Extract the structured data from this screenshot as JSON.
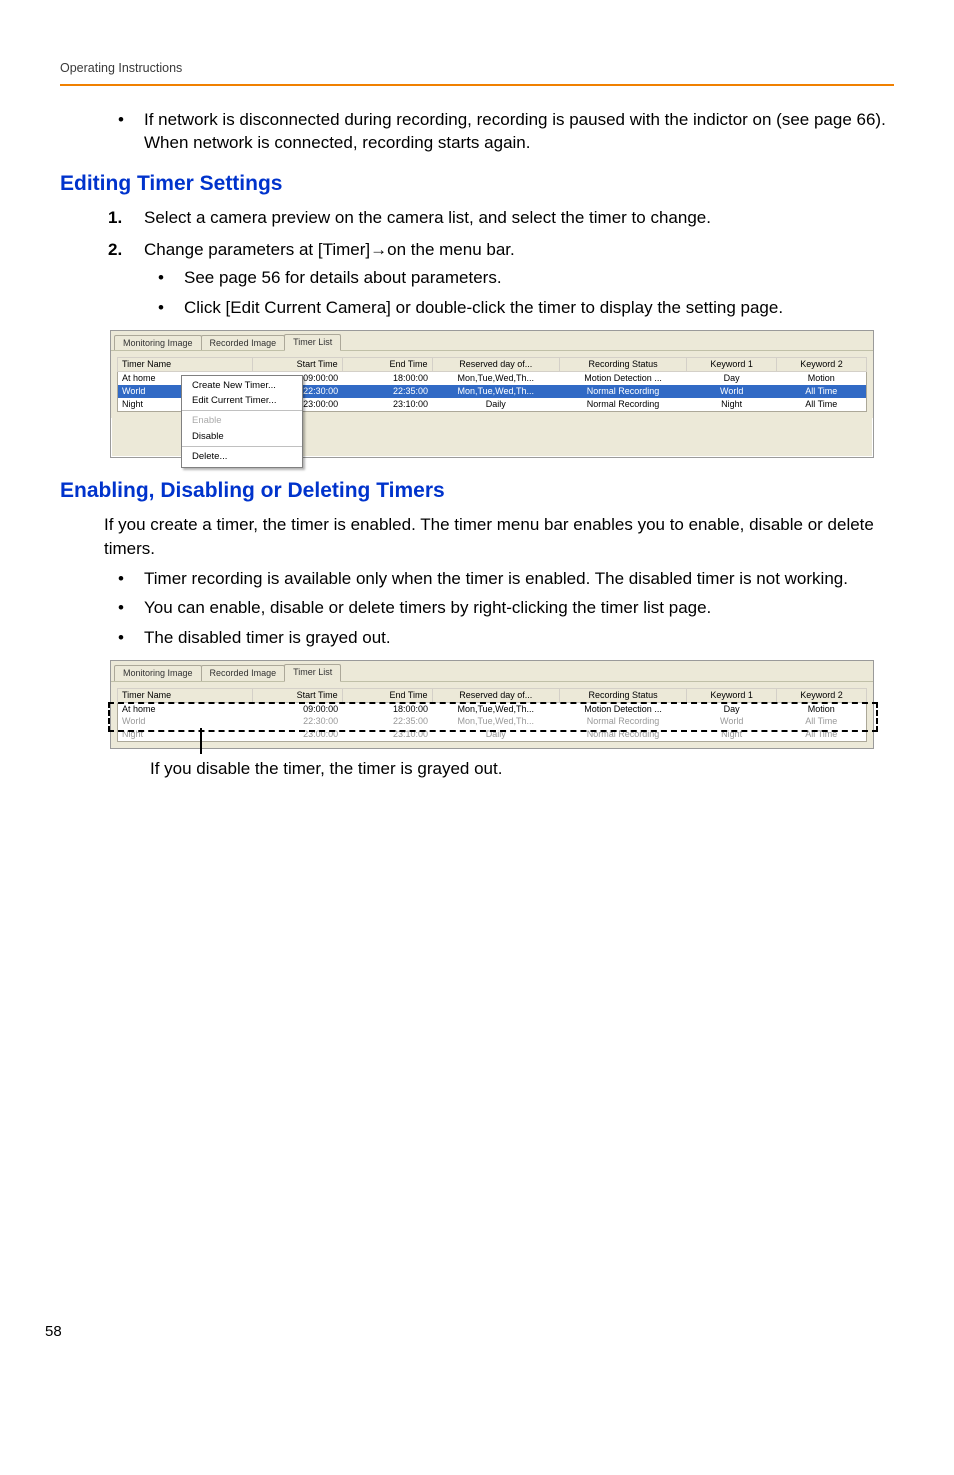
{
  "header": {
    "running": "Operating Instructions"
  },
  "intro_bullets": [
    "If network is disconnected during recording, recording is paused with the indictor on (see page 66). When network is connected, recording starts again."
  ],
  "section1": {
    "title": "Editing Timer Settings",
    "steps": [
      "Select a camera preview on the camera list, and select the timer to change.",
      "Change parameters at [Timer]→on the menu bar."
    ],
    "step2_sub": [
      "See page 56 for details about parameters.",
      "Click [Edit Current Camera] or double-click the timer to display the setting page."
    ]
  },
  "win1": {
    "tabs": [
      "Monitoring Image",
      "Recorded Image",
      "Timer List"
    ],
    "active_tab": 2,
    "columns": [
      "Timer Name",
      "Start Time",
      "End Time",
      "Reserved day of...",
      "Recording Status",
      "Keyword 1",
      "Keyword 2"
    ],
    "rows": [
      {
        "name": "At home",
        "start": "09:00:00",
        "end": "18:00:00",
        "days": "Mon,Tue,Wed,Th...",
        "status": "Motion Detection ...",
        "k1": "Day",
        "k2": "Motion"
      },
      {
        "name": "World",
        "start": "22:30:00",
        "end": "22:35:00",
        "days": "Mon,Tue,Wed,Th...",
        "status": "Normal Recording",
        "k1": "World",
        "k2": "All Time",
        "selected": true
      },
      {
        "name": "Night",
        "start": "23:00:00",
        "end": "23:10:00",
        "days": "Daily",
        "status": "Normal Recording",
        "k1": "Night",
        "k2": "All Time"
      }
    ],
    "context_menu": {
      "items": [
        {
          "label": "Create New Timer..."
        },
        {
          "label": "Edit Current Timer..."
        },
        {
          "sep": true
        },
        {
          "label": "Enable",
          "disabled": true
        },
        {
          "label": "Disable"
        },
        {
          "sep": true
        },
        {
          "label": "Delete..."
        }
      ]
    }
  },
  "section2": {
    "title": "Enabling, Disabling or Deleting Timers",
    "lead": "If you create a timer, the timer is enabled. The timer menu bar enables you to enable, disable or delete timers.",
    "bullets": [
      "Timer recording is available only when the timer is enabled. The disabled timer is not working.",
      "You can enable, disable or delete timers by right-clicking the timer list page.",
      "The disabled timer is grayed out."
    ]
  },
  "win2": {
    "tabs": [
      "Monitoring Image",
      "Recorded Image",
      "Timer List"
    ],
    "active_tab": 2,
    "columns": [
      "Timer Name",
      "Start Time",
      "End Time",
      "Reserved day of...",
      "Recording Status",
      "Keyword 1",
      "Keyword 2"
    ],
    "rows": [
      {
        "name": "At home",
        "start": "09:00:00",
        "end": "18:00:00",
        "days": "Mon,Tue,Wed,Th...",
        "status": "Motion Detection ...",
        "k1": "Day",
        "k2": "Motion"
      },
      {
        "name": "World",
        "start": "22:30:00",
        "end": "22:35:00",
        "days": "Mon,Tue,Wed,Th...",
        "status": "Normal Recording",
        "k1": "World",
        "k2": "All Time",
        "gray": true
      },
      {
        "name": "Night",
        "start": "23:00:00",
        "end": "23:10:00",
        "days": "Daily",
        "status": "Normal Recording",
        "k1": "Night",
        "k2": "All Time",
        "gray": true
      }
    ]
  },
  "callout": "If you disable the timer, the timer is grayed out.",
  "pagenum": "58"
}
